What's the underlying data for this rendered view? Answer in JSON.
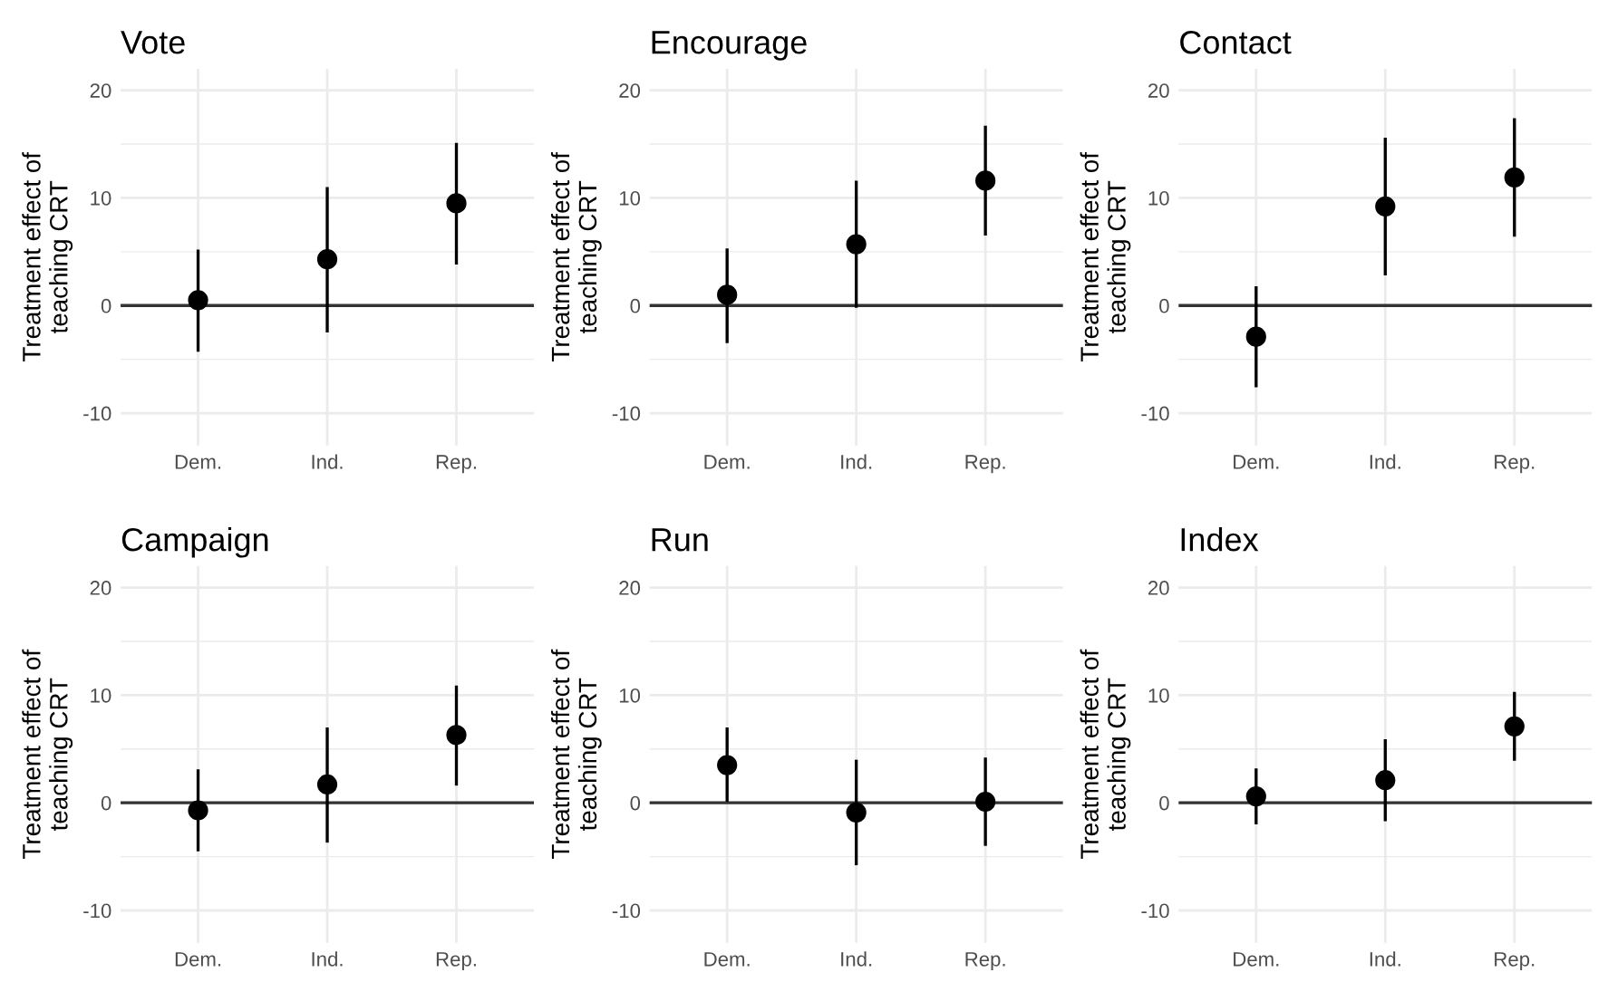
{
  "chart_data": [
    {
      "type": "scatter",
      "title": "Vote",
      "ylabel": "Treatment effect of\nteaching CRT",
      "categories": [
        "Dem.",
        "Ind.",
        "Rep."
      ],
      "values": [
        0.5,
        4.3,
        9.5
      ],
      "errors": [
        [
          -4.3,
          5.2
        ],
        [
          -2.5,
          11.0
        ],
        [
          3.8,
          15.1
        ]
      ],
      "color": "#000000",
      "marker": "circle",
      "ylim": [
        -13,
        22
      ],
      "yticks": [
        -10,
        {
          "value": -5,
          "label": null
        },
        0,
        {
          "value": 5,
          "label": null
        },
        10,
        {
          "value": 15,
          "label": null
        },
        20
      ],
      "grid": true,
      "ref_lines": [
        {
          "axis": "y",
          "value": 0,
          "label": null,
          "color": "#333333"
        }
      ]
    },
    {
      "type": "scatter",
      "title": "Encourage",
      "ylabel": "Treatment effect of\nteaching CRT",
      "categories": [
        "Dem.",
        "Ind.",
        "Rep."
      ],
      "values": [
        1.0,
        5.7,
        11.6
      ],
      "errors": [
        [
          -3.5,
          5.3
        ],
        [
          -0.2,
          11.6
        ],
        [
          6.5,
          16.7
        ]
      ],
      "color": "#000000",
      "marker": "circle",
      "ylim": [
        -13,
        22
      ],
      "yticks": [
        -10,
        {
          "value": -5,
          "label": null
        },
        0,
        {
          "value": 5,
          "label": null
        },
        10,
        {
          "value": 15,
          "label": null
        },
        20
      ],
      "grid": true,
      "ref_lines": [
        {
          "axis": "y",
          "value": 0,
          "label": null,
          "color": "#333333"
        }
      ]
    },
    {
      "type": "scatter",
      "title": "Contact",
      "ylabel": "Treatment effect of\nteaching CRT",
      "categories": [
        "Dem.",
        "Ind.",
        "Rep."
      ],
      "values": [
        -2.9,
        9.2,
        11.9
      ],
      "errors": [
        [
          -7.6,
          1.8
        ],
        [
          2.8,
          15.6
        ],
        [
          6.4,
          17.4
        ]
      ],
      "color": "#000000",
      "marker": "circle",
      "ylim": [
        -13,
        22
      ],
      "yticks": [
        -10,
        {
          "value": -5,
          "label": null
        },
        0,
        {
          "value": 5,
          "label": null
        },
        10,
        {
          "value": 15,
          "label": null
        },
        20
      ],
      "grid": true,
      "ref_lines": [
        {
          "axis": "y",
          "value": 0,
          "label": null,
          "color": "#333333"
        }
      ]
    },
    {
      "type": "scatter",
      "title": "Campaign",
      "ylabel": "Treatment effect of\nteaching CRT",
      "categories": [
        "Dem.",
        "Ind.",
        "Rep."
      ],
      "values": [
        -0.7,
        1.7,
        6.3
      ],
      "errors": [
        [
          -4.5,
          3.1
        ],
        [
          -3.7,
          7.0
        ],
        [
          1.6,
          10.9
        ]
      ],
      "color": "#000000",
      "marker": "circle",
      "ylim": [
        -13,
        22
      ],
      "yticks": [
        -10,
        {
          "value": -5,
          "label": null
        },
        0,
        {
          "value": 5,
          "label": null
        },
        10,
        {
          "value": 15,
          "label": null
        },
        20
      ],
      "grid": true,
      "ref_lines": [
        {
          "axis": "y",
          "value": 0,
          "label": null,
          "color": "#333333"
        }
      ]
    },
    {
      "type": "scatter",
      "title": "Run",
      "ylabel": "Treatment effect of\nteaching CRT",
      "categories": [
        "Dem.",
        "Ind.",
        "Rep."
      ],
      "values": [
        3.5,
        -0.9,
        0.1
      ],
      "errors": [
        [
          0.1,
          7.0
        ],
        [
          -5.8,
          4.0
        ],
        [
          -4.0,
          4.2
        ]
      ],
      "color": "#000000",
      "marker": "circle",
      "ylim": [
        -13,
        22
      ],
      "yticks": [
        -10,
        {
          "value": -5,
          "label": null
        },
        0,
        {
          "value": 5,
          "label": null
        },
        10,
        {
          "value": 15,
          "label": null
        },
        20
      ],
      "grid": true,
      "ref_lines": [
        {
          "axis": "y",
          "value": 0,
          "label": null,
          "color": "#333333"
        }
      ]
    },
    {
      "type": "scatter",
      "title": "Index",
      "ylabel": "Treatment effect of\nteaching CRT",
      "categories": [
        "Dem.",
        "Ind.",
        "Rep."
      ],
      "values": [
        0.6,
        2.1,
        7.1
      ],
      "errors": [
        [
          -2.0,
          3.2
        ],
        [
          -1.7,
          5.9
        ],
        [
          3.9,
          10.3
        ]
      ],
      "color": "#000000",
      "marker": "circle",
      "ylim": [
        -13,
        22
      ],
      "yticks": [
        -10,
        {
          "value": -5,
          "label": null
        },
        0,
        {
          "value": 5,
          "label": null
        },
        10,
        {
          "value": 15,
          "label": null
        },
        20
      ],
      "grid": true,
      "ref_lines": [
        {
          "axis": "y",
          "value": 0,
          "label": null,
          "color": "#333333"
        }
      ]
    }
  ]
}
